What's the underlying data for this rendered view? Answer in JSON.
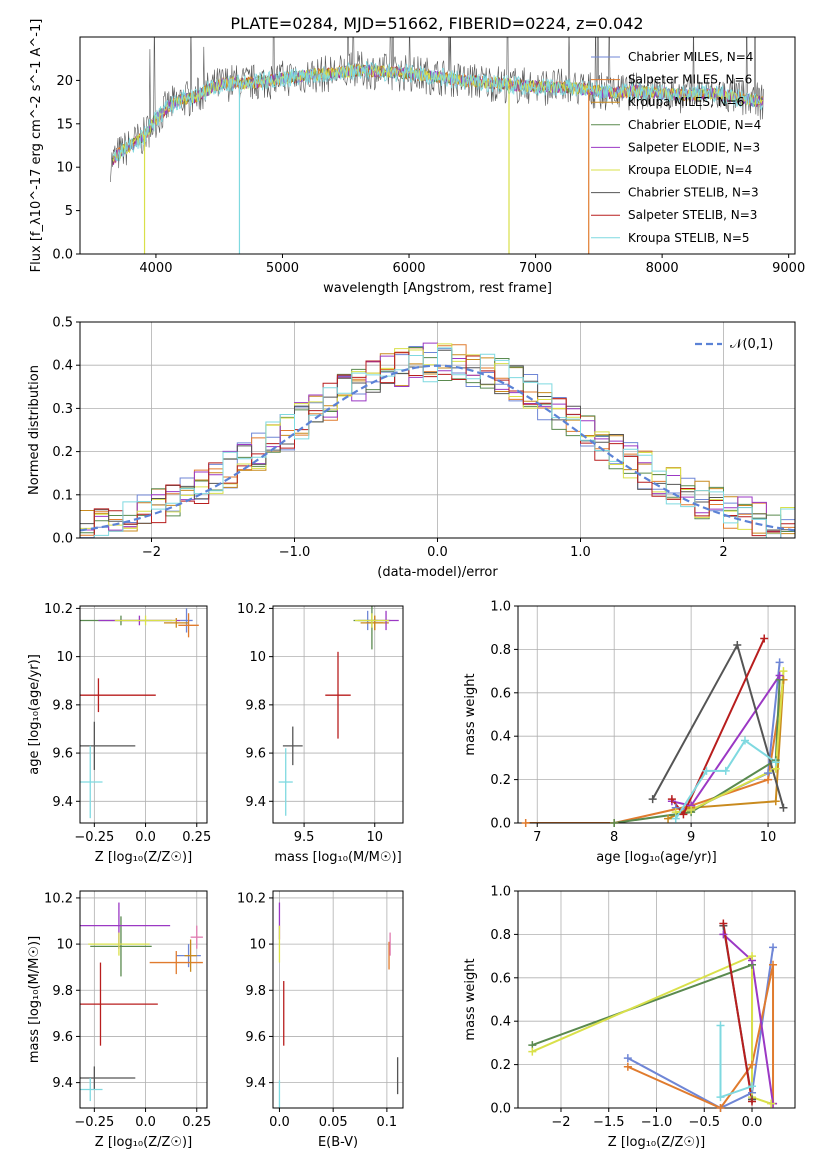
{
  "title": "PLATE=0284, MJD=51662, FIBERID=0224, z=0.042",
  "colors": {
    "series": [
      "#6f86d6",
      "#e07b2e",
      "#c98a1e",
      "#5a8a4f",
      "#9b38c4",
      "#d9e04a",
      "#555555",
      "#b81e1e",
      "#7fd9e0"
    ],
    "normal_curve": "#5b82d6",
    "extra": [
      "#e07ab0",
      "#8b6b4a"
    ],
    "grid": "#b0b0b0"
  },
  "chart_data": [
    {
      "id": "spectrum",
      "type": "line",
      "xlabel": "wavelength [Angstrom, rest frame]",
      "ylabel": "Flux [f_λ10^-17 erg cm^-2 s^-1 A^-1]",
      "xlim": [
        3400,
        9050
      ],
      "ylim": [
        0,
        25
      ],
      "xticks": [
        4000,
        5000,
        6000,
        7000,
        8000,
        9000
      ],
      "yticks": [
        0,
        5,
        10,
        15,
        20
      ],
      "grid": false,
      "legend_position": "top-right",
      "legend": [
        "Chabrier MILES, N_SSP=4",
        "Salpeter MILES, N_SSP=6",
        "Kroupa MILES, N_SSP=6",
        "Chabrier ELODIE, N_SSP=4",
        "Salpeter ELODIE, N_SSP=3",
        "Kroupa ELODIE, N_SSP=4",
        "Chabrier STELIB, N_SSP=3",
        "Salpeter STELIB, N_SSP=3",
        "Kroupa STELIB, N_SSP=5"
      ],
      "continuum": {
        "x": [
          3640,
          3700,
          3800,
          3900,
          4000,
          4100,
          4200,
          4300,
          4400,
          4500,
          4600,
          4700,
          4800,
          4900,
          5000,
          5200,
          5400,
          5600,
          5800,
          6000,
          6200,
          6400,
          6600,
          6800,
          7000,
          7200,
          7400,
          7600,
          7800,
          8000,
          8200,
          8400,
          8600,
          8800
        ],
        "y": [
          10.5,
          11.5,
          12.5,
          13.5,
          15.5,
          17.0,
          17.8,
          18.0,
          18.8,
          19.5,
          19.8,
          19.6,
          19.8,
          20.0,
          20.2,
          20.6,
          20.8,
          21.2,
          21.0,
          20.8,
          20.5,
          20.0,
          19.8,
          19.5,
          19.3,
          19.2,
          19.0,
          18.5,
          18.8,
          18.5,
          18.3,
          18.5,
          18.0,
          17.5
        ]
      },
      "dips": [
        {
          "x": 3910,
          "y": 0
        },
        {
          "x": 4660,
          "y": 0
        },
        {
          "x": 6790,
          "y": 0
        },
        {
          "x": 7420,
          "y": 0
        }
      ]
    },
    {
      "id": "residuals",
      "type": "histogram",
      "xlabel": "(data-model)/error",
      "ylabel": "Normed distribution",
      "xlim": [
        -2.5,
        2.5
      ],
      "ylim": [
        0,
        0.5
      ],
      "xticks": [
        -2,
        -1,
        0,
        1,
        2
      ],
      "yticks": [
        0.0,
        0.1,
        0.2,
        0.3,
        0.4,
        0.5
      ],
      "grid": true,
      "bin_width": 0.1,
      "legend_position": "top-right",
      "legend": [
        "𝒩(0,1)"
      ],
      "normal_mean": 0,
      "normal_sigma": 1
    },
    {
      "id": "age_vs_Z",
      "type": "scatter",
      "xlabel": "Z [log₁₀(Z/Z☉)]",
      "ylabel": "age [log₁₀(age/yr)]",
      "xlim": [
        -0.32,
        0.3
      ],
      "ylim": [
        9.31,
        10.21
      ],
      "xticks": [
        -0.25,
        0.0,
        0.25
      ],
      "yticks": [
        9.4,
        9.6,
        9.8,
        10.0,
        10.2
      ],
      "grid": true,
      "points": [
        {
          "x": 0.2,
          "y": 10.15,
          "xerr": 0.03,
          "yerr": 0.05,
          "c": 0
        },
        {
          "x": 0.21,
          "y": 10.13,
          "xerr": 0.05,
          "yerr": 0.05,
          "c": 1
        },
        {
          "x": 0.15,
          "y": 10.14,
          "xerr": 0.06,
          "yerr": 0.02,
          "c": 2
        },
        {
          "x": -0.12,
          "y": 10.15,
          "xerr": 0.25,
          "yerr": 0.02,
          "c": 3
        },
        {
          "x": -0.03,
          "y": 10.15,
          "xerr": 0.2,
          "yerr": 0.02,
          "c": 4
        },
        {
          "x": 0.0,
          "y": 10.15,
          "xerr": 0.15,
          "yerr": 0.02,
          "c": 5
        },
        {
          "x": -0.25,
          "y": 9.63,
          "xerr": 0.2,
          "yerr": 0.1,
          "c": 6
        },
        {
          "x": -0.23,
          "y": 9.84,
          "xerr": 0.28,
          "yerr": 0.07,
          "c": 7
        },
        {
          "x": -0.27,
          "y": 9.48,
          "xerr": 0.06,
          "yerr": 0.15,
          "c": 8
        }
      ]
    },
    {
      "id": "age_vs_mass",
      "type": "scatter",
      "xlabel": "mass [log₁₀(M/M☉)]",
      "ylabel": "",
      "xlim": [
        9.28,
        10.2
      ],
      "ylim": [
        9.31,
        10.21
      ],
      "xticks": [
        9.5,
        10.0
      ],
      "yticks": [
        9.4,
        9.6,
        9.8,
        10.0,
        10.2
      ],
      "grid": true,
      "points": [
        {
          "x": 9.95,
          "y": 10.15,
          "xerr": 0.07,
          "yerr": 0.04,
          "c": 0
        },
        {
          "x": 10.0,
          "y": 10.14,
          "xerr": 0.06,
          "yerr": 0.03,
          "c": 1
        },
        {
          "x": 10.0,
          "y": 10.14,
          "xerr": 0.1,
          "yerr": 0.03,
          "c": 2
        },
        {
          "x": 9.98,
          "y": 10.15,
          "xerr": 0.13,
          "yerr": 0.12,
          "c": 3
        },
        {
          "x": 10.08,
          "y": 10.15,
          "xerr": 0.09,
          "yerr": 0.04,
          "c": 4
        },
        {
          "x": 9.98,
          "y": 10.15,
          "xerr": 0.12,
          "yerr": 0.03,
          "c": 5
        },
        {
          "x": 9.42,
          "y": 9.63,
          "xerr": 0.07,
          "yerr": 0.08,
          "c": 6
        },
        {
          "x": 9.74,
          "y": 9.84,
          "xerr": 0.09,
          "yerr": 0.18,
          "c": 7
        },
        {
          "x": 9.37,
          "y": 9.48,
          "xerr": 0.05,
          "yerr": 0.14,
          "c": 8
        }
      ]
    },
    {
      "id": "weight_vs_age",
      "type": "line",
      "xlabel": "age [log₁₀(age/yr)]",
      "ylabel": "mass weight",
      "xlim": [
        6.75,
        10.35
      ],
      "ylim": [
        0,
        1.0
      ],
      "xticks": [
        7,
        8,
        9,
        10
      ],
      "yticks": [
        0.0,
        0.2,
        0.4,
        0.6,
        0.8,
        1.0
      ],
      "grid": true,
      "series": [
        {
          "c": 0,
          "x": [
            8.8,
            9.0,
            10.0,
            10.15
          ],
          "y": [
            0.07,
            0.06,
            0.23,
            0.74
          ]
        },
        {
          "c": 1,
          "x": [
            6.85,
            8.0,
            9.0,
            10.0,
            10.2
          ],
          "y": [
            0.0,
            0.0,
            0.08,
            0.2,
            0.66
          ]
        },
        {
          "c": 2,
          "x": [
            8.7,
            9.0,
            10.1,
            10.2
          ],
          "y": [
            0.02,
            0.07,
            0.1,
            0.66
          ]
        },
        {
          "c": 3,
          "x": [
            8.0,
            9.0,
            10.1,
            10.15
          ],
          "y": [
            0.0,
            0.05,
            0.29,
            0.66
          ]
        },
        {
          "c": 4,
          "x": [
            8.75,
            9.0,
            10.15
          ],
          "y": [
            0.1,
            0.08,
            0.68
          ]
        },
        {
          "c": 5,
          "x": [
            8.8,
            9.0,
            10.1,
            10.2
          ],
          "y": [
            0.05,
            0.06,
            0.25,
            0.7
          ]
        },
        {
          "c": 6,
          "x": [
            8.5,
            9.6,
            10.2
          ],
          "y": [
            0.11,
            0.82,
            0.07
          ]
        },
        {
          "c": 7,
          "x": [
            8.75,
            8.9,
            9.95
          ],
          "y": [
            0.11,
            0.04,
            0.85
          ]
        },
        {
          "c": 8,
          "x": [
            8.8,
            9.2,
            9.45,
            9.7,
            10.1
          ],
          "y": [
            0.02,
            0.24,
            0.24,
            0.38,
            0.28
          ]
        }
      ]
    },
    {
      "id": "mass_vs_Z",
      "type": "scatter",
      "xlabel": "Z [log₁₀(Z/Z☉)]",
      "ylabel": "mass [log₁₀(M/M☉)]",
      "xlim": [
        -0.32,
        0.3
      ],
      "ylim": [
        9.29,
        10.23
      ],
      "xticks": [
        -0.25,
        0.0,
        0.25
      ],
      "yticks": [
        9.4,
        9.6,
        9.8,
        10.0,
        10.2
      ],
      "grid": true,
      "points": [
        {
          "x": 0.21,
          "y": 9.95,
          "xerr": 0.06,
          "yerr": 0.05,
          "c": 0
        },
        {
          "x": 0.15,
          "y": 9.92,
          "xerr": 0.13,
          "yerr": 0.05,
          "c": 1
        },
        {
          "x": 0.22,
          "y": 9.95,
          "xerr": 0.03,
          "yerr": 0.07,
          "c": 2
        },
        {
          "x": -0.12,
          "y": 9.99,
          "xerr": 0.15,
          "yerr": 0.13,
          "c": 3
        },
        {
          "x": -0.13,
          "y": 10.08,
          "xerr": 0.25,
          "yerr": 0.1,
          "c": 4
        },
        {
          "x": -0.13,
          "y": 10.0,
          "xerr": 0.15,
          "yerr": 0.05,
          "c": 5
        },
        {
          "x": -0.25,
          "y": 9.42,
          "xerr": 0.2,
          "yerr": 0.05,
          "c": 6
        },
        {
          "x": -0.22,
          "y": 9.74,
          "xerr": 0.28,
          "yerr": 0.18,
          "c": 7
        },
        {
          "x": -0.27,
          "y": 9.37,
          "xerr": 0.06,
          "yerr": 0.05,
          "c": 8
        },
        {
          "x": 0.25,
          "y": 10.03,
          "xerr": 0.03,
          "yerr": 0.05,
          "c": 9
        }
      ]
    },
    {
      "id": "mass_vs_ebv",
      "type": "scatter",
      "xlabel": "E(B-V)",
      "ylabel": "",
      "xlim": [
        -0.006,
        0.115
      ],
      "ylim": [
        9.29,
        10.23
      ],
      "xticks": [
        0.0,
        0.05,
        0.1
      ],
      "yticks": [
        9.4,
        9.6,
        9.8,
        10.0,
        10.2
      ],
      "grid": true,
      "points": [
        {
          "x": 0.0,
          "y": 10.1,
          "yerr": 0.08,
          "c": 4
        },
        {
          "x": 0.0,
          "y": 10.0,
          "yerr": 0.08,
          "c": 5
        },
        {
          "x": 0.102,
          "y": 9.95,
          "yerr": 0.06,
          "c": 1
        },
        {
          "x": 0.103,
          "y": 10.0,
          "yerr": 0.05,
          "c": 9
        },
        {
          "x": 0.004,
          "y": 9.7,
          "yerr": 0.14,
          "c": 7
        },
        {
          "x": 0.11,
          "y": 9.43,
          "yerr": 0.08,
          "c": 6
        },
        {
          "x": 0.0,
          "y": 9.35,
          "yerr": 0.06,
          "c": 8
        }
      ]
    },
    {
      "id": "weight_vs_Z",
      "type": "line",
      "xlabel": "Z [log₁₀(Z/Z☉)]",
      "ylabel": "mass weight",
      "xlim": [
        -2.45,
        0.45
      ],
      "ylim": [
        0,
        1.0
      ],
      "xticks": [
        -2.0,
        -1.5,
        -1.0,
        -0.5,
        0.0
      ],
      "yticks": [
        0.0,
        0.2,
        0.4,
        0.6,
        0.8,
        1.0
      ],
      "grid": true,
      "series": [
        {
          "c": 0,
          "x": [
            -1.3,
            -0.33,
            0.0,
            0.22
          ],
          "y": [
            0.23,
            0.0,
            0.07,
            0.74
          ]
        },
        {
          "c": 1,
          "x": [
            -1.3,
            -0.33,
            0.0,
            0.22,
            0.22
          ],
          "y": [
            0.19,
            0.0,
            0.2,
            0.66,
            0.02
          ]
        },
        {
          "c": 3,
          "x": [
            -2.3,
            0.0,
            0.0
          ],
          "y": [
            0.29,
            0.66,
            0.04
          ]
        },
        {
          "c": 4,
          "x": [
            -0.3,
            0.0,
            0.22
          ],
          "y": [
            0.8,
            0.68,
            0.02
          ]
        },
        {
          "c": 5,
          "x": [
            -2.3,
            0.0,
            0.0,
            0.2
          ],
          "y": [
            0.26,
            0.7,
            0.05,
            0.02
          ]
        },
        {
          "c": 6,
          "x": [
            -0.3,
            0.0
          ],
          "y": [
            0.84,
            0.04
          ]
        },
        {
          "c": 7,
          "x": [
            -0.3,
            0.0
          ],
          "y": [
            0.85,
            0.03
          ]
        },
        {
          "c": 8,
          "x": [
            -0.33,
            -0.33,
            0.0
          ],
          "y": [
            0.38,
            0.05,
            0.1
          ]
        }
      ]
    }
  ]
}
